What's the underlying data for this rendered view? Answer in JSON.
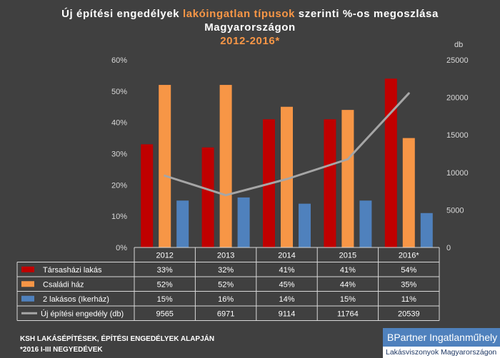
{
  "title": {
    "part1": "Új építési engedélyek ",
    "highlight": "lakóingatlan típusok",
    "part2": " szerinti %-os megoszlása",
    "line2": "Magyarországon",
    "line3": "2012-2016*"
  },
  "chart_data": {
    "type": "bar",
    "categories": [
      "2012",
      "2013",
      "2014",
      "2015",
      "2016*"
    ],
    "series": [
      {
        "name": "Társasházi lakás",
        "type": "bar",
        "axis": "left",
        "color": "#c00000",
        "values": [
          33,
          32,
          41,
          41,
          54
        ],
        "labels": [
          "33%",
          "32%",
          "41%",
          "41%",
          "54%"
        ]
      },
      {
        "name": "Családi ház",
        "type": "bar",
        "axis": "left",
        "color": "#f79646",
        "values": [
          52,
          52,
          45,
          44,
          35
        ],
        "labels": [
          "52%",
          "52%",
          "45%",
          "44%",
          "35%"
        ]
      },
      {
        "name": "2 lakásos (Ikerház)",
        "type": "bar",
        "axis": "left",
        "color": "#4f81bd",
        "values": [
          15,
          16,
          14,
          15,
          11
        ],
        "labels": [
          "15%",
          "16%",
          "14%",
          "15%",
          "11%"
        ]
      },
      {
        "name": "Új építési engedély (db)",
        "type": "line",
        "axis": "right",
        "color": "#a6a6a6",
        "values": [
          9565,
          6971,
          9114,
          11764,
          20539
        ],
        "labels": [
          "9565",
          "6971",
          "9114",
          "11764",
          "20539"
        ]
      }
    ],
    "y_left": {
      "min": 0,
      "max": 60,
      "ticks": [
        "0%",
        "10%",
        "20%",
        "30%",
        "40%",
        "50%",
        "60%"
      ]
    },
    "y_right": {
      "unit": "db",
      "min": 0,
      "max": 25000,
      "ticks": [
        "0",
        "5000",
        "10000",
        "15000",
        "20000",
        "25000"
      ]
    },
    "legend": "data-table",
    "grid": false
  },
  "footer": {
    "line1": "KSH LAKÁSÉPÍTÉSEK, ÉPÍTÉSI ENGEDÉLYEK ALAPJÁN",
    "line2": "*2016 I-III NEGYEDÉVEK"
  },
  "logo": {
    "line1": "BPartner Ingatlanműhely",
    "line2": "Lakásviszonyok Magyarországon"
  }
}
